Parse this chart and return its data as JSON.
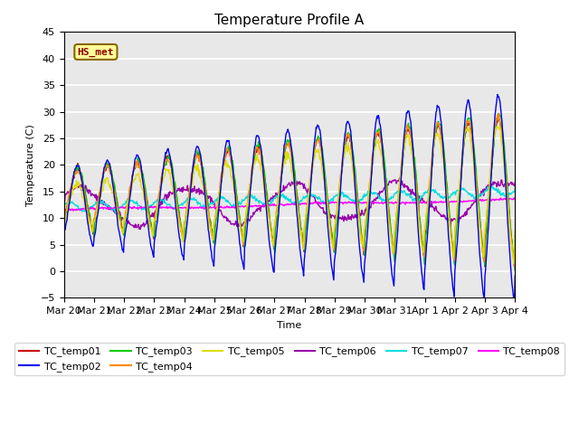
{
  "title": "Temperature Profile A",
  "xlabel": "Time",
  "ylabel": "Temperature (C)",
  "ylim": [
    -5,
    45
  ],
  "yticks": [
    -5,
    0,
    5,
    10,
    15,
    20,
    25,
    30,
    35,
    40,
    45
  ],
  "date_labels": [
    "Mar 20",
    "Mar 21",
    "Mar 22",
    "Mar 23",
    "Mar 24",
    "Mar 25",
    "Mar 26",
    "Mar 27",
    "Mar 28",
    "Mar 29",
    "Mar 30",
    "Mar 31",
    "Apr 1",
    "Apr 2",
    "Apr 3",
    "Apr 4"
  ],
  "series_colors": {
    "TC_temp01": "#cc0000",
    "TC_temp02": "#0000ee",
    "TC_temp03": "#00cc00",
    "TC_temp04": "#ff8800",
    "TC_temp05": "#dddd00",
    "TC_temp06": "#9900aa",
    "TC_temp07": "#00dddd",
    "TC_temp08": "#ff00ff"
  },
  "series_names": [
    "TC_temp01",
    "TC_temp02",
    "TC_temp03",
    "TC_temp04",
    "TC_temp05",
    "TC_temp06",
    "TC_temp07",
    "TC_temp08"
  ],
  "annotation_label": "HS_met",
  "annotation_color": "#880000",
  "annotation_bg": "#ffff99",
  "annotation_border": "#886600",
  "plot_bg": "#e8e8e8",
  "title_fontsize": 11,
  "axis_fontsize": 8,
  "legend_fontsize": 8,
  "n_days": 15,
  "points_per_day": 48
}
